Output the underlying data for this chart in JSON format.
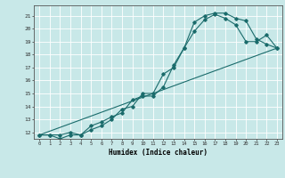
{
  "title": "",
  "xlabel": "Humidex (Indice chaleur)",
  "bg_color": "#c8e8e8",
  "line_color": "#1a6b6b",
  "grid_color": "#ffffff",
  "xlim": [
    -0.5,
    23.5
  ],
  "ylim": [
    11.5,
    21.8
  ],
  "yticks": [
    12,
    13,
    14,
    15,
    16,
    17,
    18,
    19,
    20,
    21
  ],
  "xticks": [
    0,
    1,
    2,
    3,
    4,
    5,
    6,
    7,
    8,
    9,
    10,
    11,
    12,
    13,
    14,
    15,
    16,
    17,
    18,
    19,
    20,
    21,
    22,
    23
  ],
  "line1_x": [
    0,
    1,
    2,
    3,
    4,
    5,
    6,
    7,
    8,
    9,
    10,
    11,
    12,
    13,
    14,
    15,
    16,
    17,
    18,
    19,
    20,
    21,
    22,
    23
  ],
  "line1_y": [
    11.8,
    11.8,
    11.8,
    12.0,
    11.8,
    12.5,
    12.8,
    13.2,
    13.5,
    14.5,
    14.8,
    14.8,
    15.5,
    17.2,
    18.5,
    20.5,
    21.0,
    21.2,
    21.2,
    20.8,
    20.6,
    19.2,
    18.8,
    18.5
  ],
  "line2_x": [
    0,
    1,
    2,
    3,
    4,
    5,
    6,
    7,
    8,
    9,
    10,
    11,
    12,
    13,
    14,
    15,
    16,
    17,
    18,
    19,
    20,
    21,
    22,
    23
  ],
  "line2_y": [
    11.8,
    11.8,
    11.5,
    11.8,
    11.8,
    12.2,
    12.5,
    13.0,
    13.8,
    14.0,
    15.0,
    15.0,
    16.5,
    17.0,
    18.5,
    19.8,
    20.7,
    21.1,
    20.8,
    20.3,
    19.0,
    19.0,
    19.5,
    18.5
  ],
  "line3_x": [
    0,
    23
  ],
  "line3_y": [
    11.8,
    18.5
  ]
}
